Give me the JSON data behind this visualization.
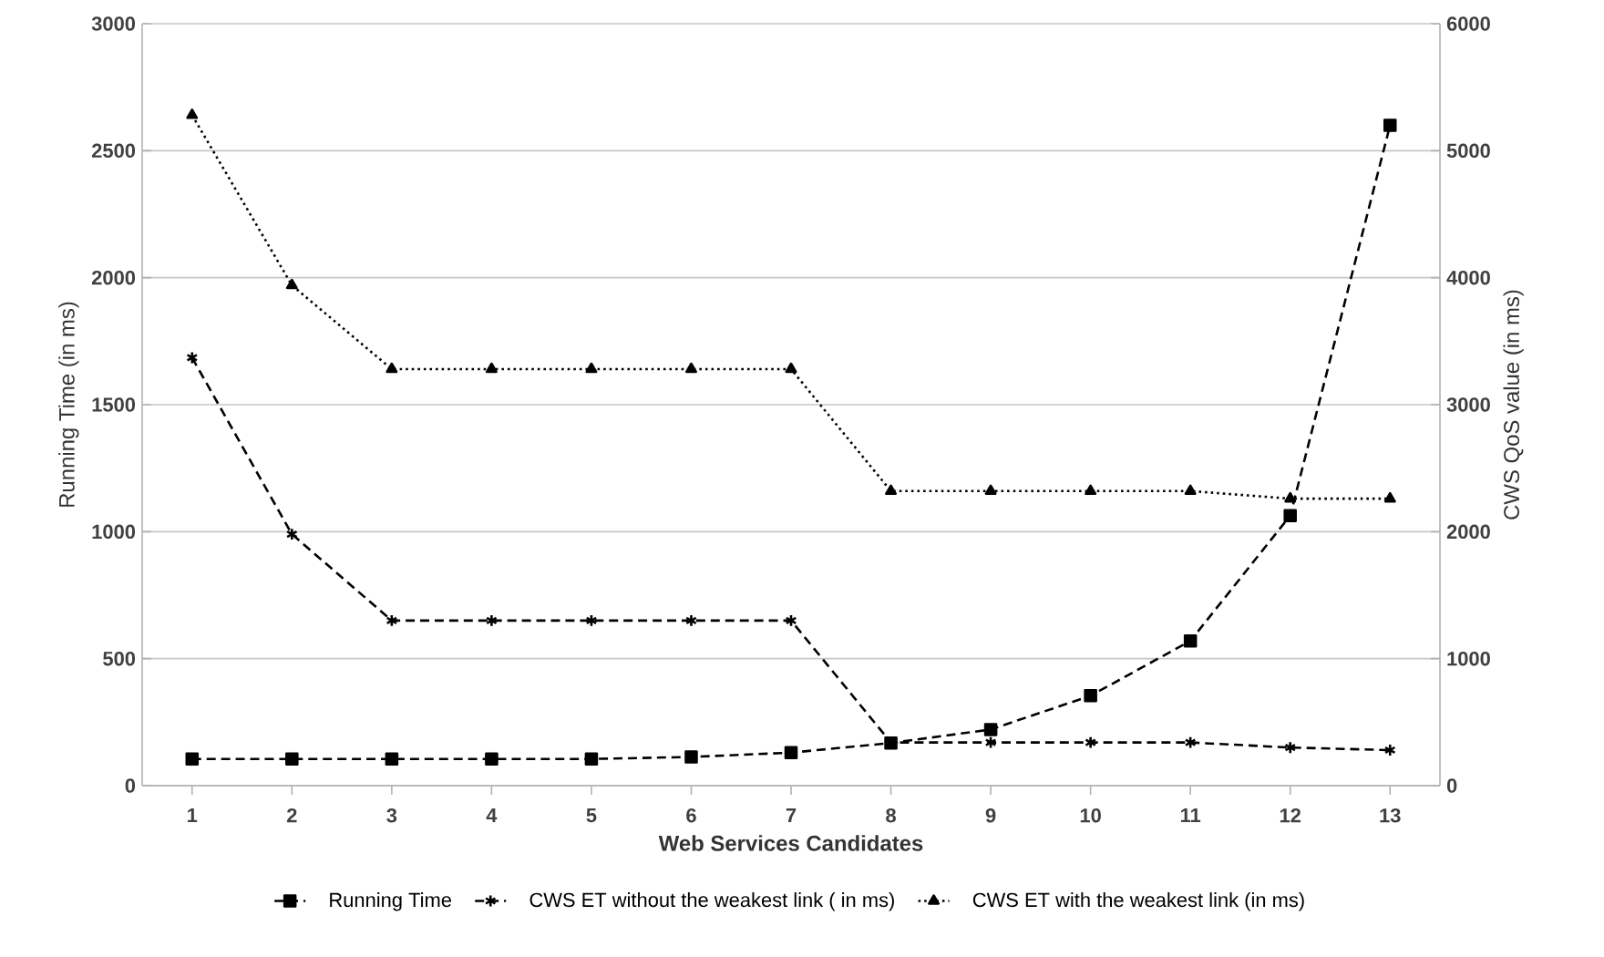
{
  "chart_data": {
    "type": "line",
    "xlabel": "Web Services Candidates",
    "ylabel": "Running Time  (in ms)",
    "y2label": "CWS QoS value (in ms)",
    "categories": [
      "1",
      "2",
      "3",
      "4",
      "5",
      "6",
      "7",
      "8",
      "9",
      "10",
      "11",
      "12",
      "13"
    ],
    "series": [
      {
        "name": "Running Time",
        "color": "#000000",
        "marker": "square",
        "line_style": "dashed",
        "values": [
          105,
          105,
          105,
          105,
          105,
          113,
          130,
          168,
          221,
          354,
          570,
          1063,
          2600
        ]
      },
      {
        "name": "CWS ET without the weakest link ( in ms)",
        "color": "#000000",
        "marker": "cross",
        "line_style": "dashed",
        "axis": "y2",
        "values": [
          3370,
          1980,
          1300,
          1300,
          1300,
          1300,
          1300,
          340,
          340,
          340,
          340,
          300,
          280
        ]
      },
      {
        "name": "CWS ET with the weakest link (in ms)",
        "color": "#000000",
        "marker": "triangle",
        "line_style": "dotted",
        "axis": "y2",
        "values": [
          5280,
          3940,
          3280,
          3280,
          3280,
          3280,
          3280,
          2320,
          2320,
          2320,
          2320,
          2260,
          2260
        ]
      }
    ],
    "ylim": [
      0,
      3000
    ],
    "yticks": [
      0,
      500,
      1000,
      1500,
      2000,
      2500,
      3000
    ],
    "y2lim": [
      0,
      6000
    ],
    "y2ticks": [
      0,
      1000,
      2000,
      3000,
      4000,
      5000,
      6000
    ],
    "grid": "y",
    "legend": "bottom"
  }
}
